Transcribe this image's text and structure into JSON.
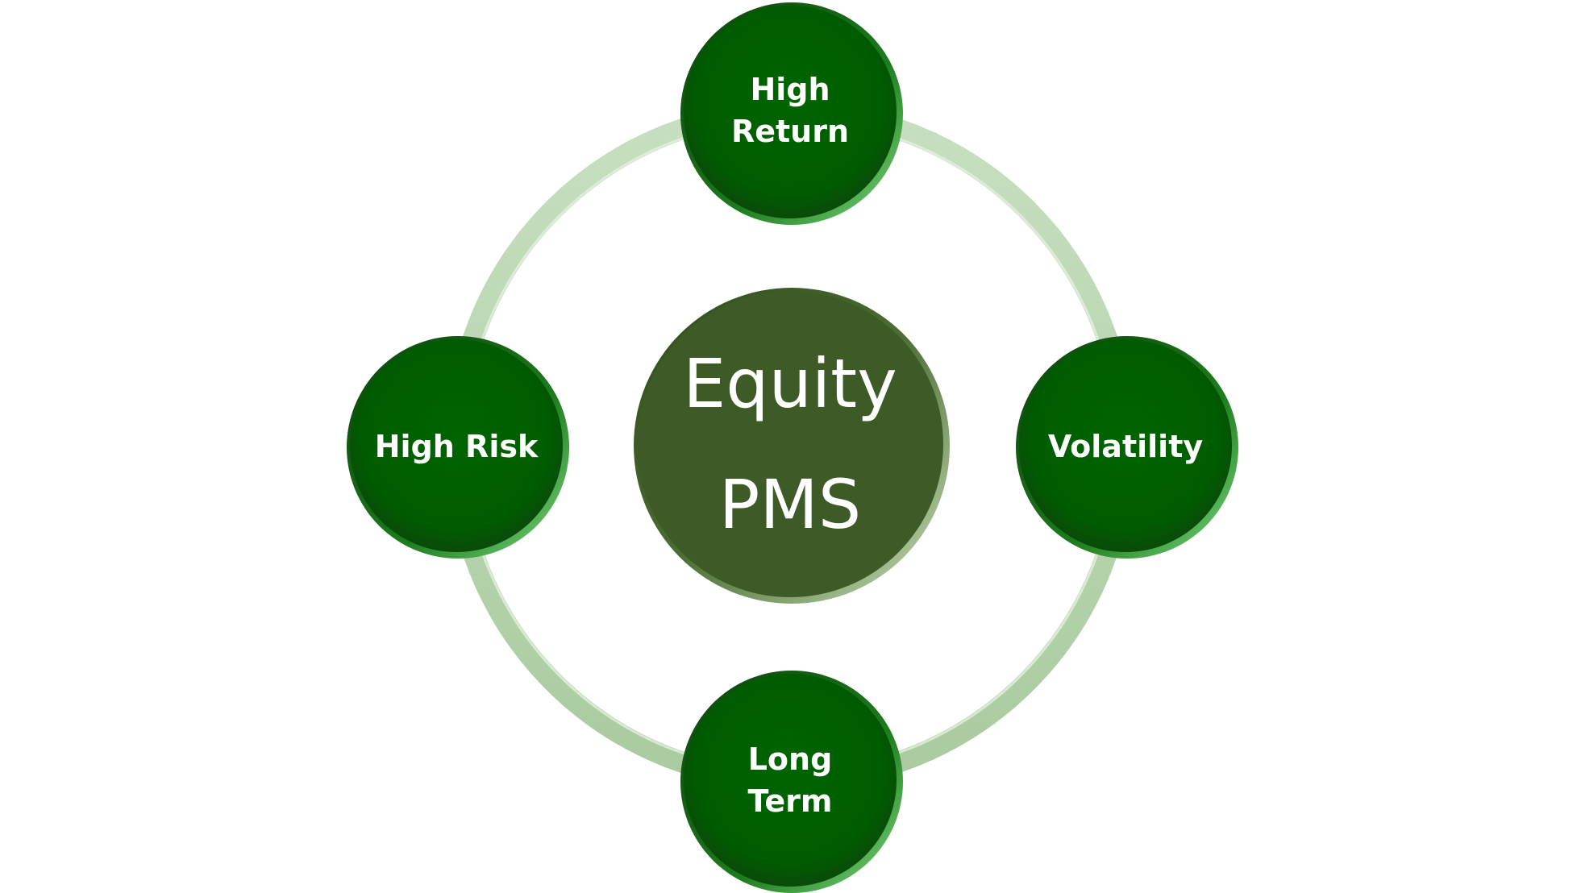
{
  "diagram": {
    "center": {
      "lines": [
        "Equity",
        "PMS"
      ],
      "fill": "#3d5a27"
    },
    "nodes": [
      {
        "id": "top",
        "lines": [
          "High",
          "Return"
        ]
      },
      {
        "id": "right",
        "lines": [
          "Volatility"
        ]
      },
      {
        "id": "bottom",
        "lines": [
          "Long",
          "Term"
        ]
      },
      {
        "id": "left",
        "lines": [
          "High Risk"
        ]
      }
    ],
    "colors": {
      "node_fill": "#005e00",
      "ring": "#b9d5b0",
      "text": "#ffffff"
    }
  }
}
